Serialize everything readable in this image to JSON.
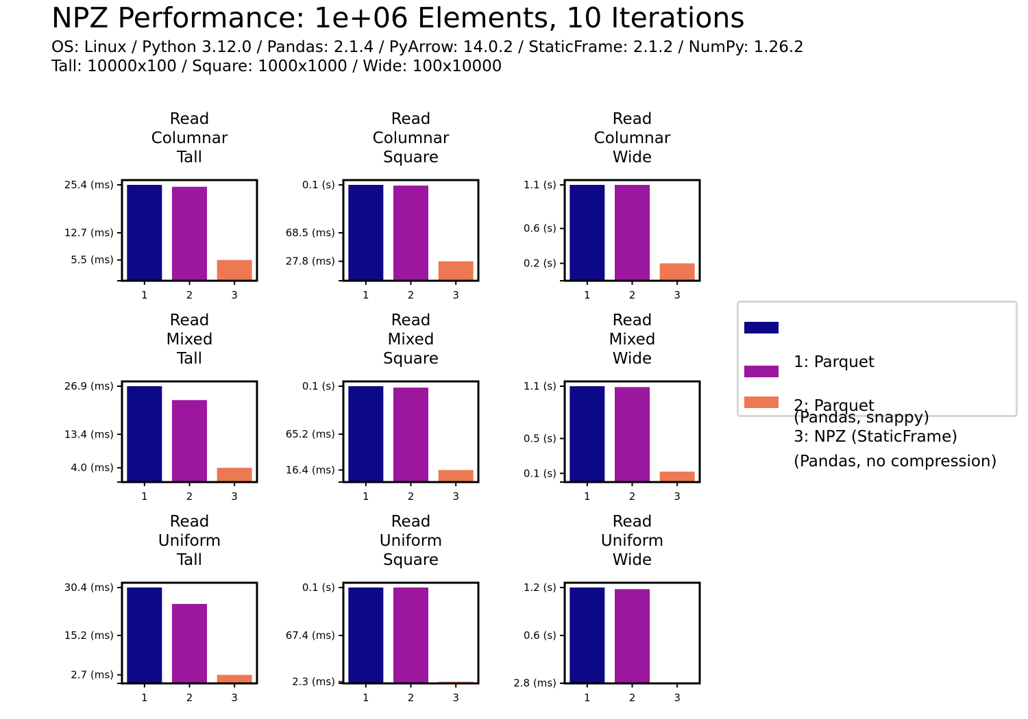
{
  "title": "NPZ Performance: 1e+06 Elements, 10 Iterations",
  "subtitle_lines": [
    "OS: Linux / Python 3.12.0 / Pandas: 2.1.4 / PyArrow: 14.0.2 / StaticFrame: 2.1.2 / NumPy: 1.26.2",
    "Tall: 10000x100 / Square: 1000x1000 / Wide: 100x10000"
  ],
  "colors": {
    "series1": "#0d0887",
    "series2": "#9c179e",
    "series3": "#ed7953"
  },
  "legend": {
    "placement": "right",
    "items": [
      {
        "line1": "1: Parquet",
        "line2": "(Pandas, snappy)"
      },
      {
        "line1": "2: Parquet",
        "line2": "(Pandas, no compression)"
      },
      {
        "line1": "3: NPZ (StaticFrame)",
        "line2": ""
      }
    ]
  },
  "chart_data": [
    {
      "type": "bar",
      "title": [
        "Read",
        "Columnar",
        "Tall"
      ],
      "categories": [
        "1",
        "2",
        "3"
      ],
      "values_ms": [
        25.4,
        24.9,
        5.5
      ],
      "yticks_ms": [
        25.4,
        12.7,
        5.5
      ],
      "ytick_labels": [
        "25.4 (ms)",
        "12.7 (ms)",
        "5.5 (ms)"
      ]
    },
    {
      "type": "bar",
      "title": [
        "Read",
        "Columnar",
        "Square"
      ],
      "categories": [
        "1",
        "2",
        "3"
      ],
      "values_ms": [
        137.0,
        136.0,
        27.8
      ],
      "yticks_ms": [
        137.0,
        68.5,
        27.8
      ],
      "ytick_labels": [
        "0.1 (s)",
        "68.5 (ms)",
        "27.8 (ms)"
      ]
    },
    {
      "type": "bar",
      "title": [
        "Read",
        "Columnar",
        "Wide"
      ],
      "categories": [
        "1",
        "2",
        "3"
      ],
      "values_ms": [
        1100,
        1100,
        200
      ],
      "yticks_ms": [
        1100,
        600,
        200
      ],
      "ytick_labels": [
        "1.1 (s)",
        "0.6 (s)",
        "0.2 (s)"
      ]
    },
    {
      "type": "bar",
      "title": [
        "Read",
        "Mixed",
        "Tall"
      ],
      "categories": [
        "1",
        "2",
        "3"
      ],
      "values_ms": [
        26.9,
        23.0,
        4.0
      ],
      "yticks_ms": [
        26.9,
        13.4,
        4.0
      ],
      "ytick_labels": [
        "26.9 (ms)",
        "13.4 (ms)",
        "4.0 (ms)"
      ]
    },
    {
      "type": "bar",
      "title": [
        "Read",
        "Mixed",
        "Square"
      ],
      "categories": [
        "1",
        "2",
        "3"
      ],
      "values_ms": [
        130.4,
        128.5,
        16.4
      ],
      "yticks_ms": [
        130.4,
        65.2,
        16.4
      ],
      "ytick_labels": [
        "0.1 (s)",
        "65.2 (ms)",
        "16.4 (ms)"
      ]
    },
    {
      "type": "bar",
      "title": [
        "Read",
        "Mixed",
        "Wide"
      ],
      "categories": [
        "1",
        "2",
        "3"
      ],
      "values_ms": [
        1100,
        1090,
        120
      ],
      "yticks_ms": [
        1100,
        500,
        100
      ],
      "ytick_labels": [
        "1.1 (s)",
        "0.5 (s)",
        "0.1 (s)"
      ]
    },
    {
      "type": "bar",
      "title": [
        "Read",
        "Uniform",
        "Tall"
      ],
      "categories": [
        "1",
        "2",
        "3"
      ],
      "values_ms": [
        30.4,
        25.2,
        2.7
      ],
      "yticks_ms": [
        30.4,
        15.2,
        2.7
      ],
      "ytick_labels": [
        "30.4 (ms)",
        "15.2 (ms)",
        "2.7 (ms)"
      ]
    },
    {
      "type": "bar",
      "title": [
        "Read",
        "Uniform",
        "Square"
      ],
      "categories": [
        "1",
        "2",
        "3"
      ],
      "values_ms": [
        134.8,
        134.8,
        2.3
      ],
      "yticks_ms": [
        134.8,
        67.4,
        2.3
      ],
      "ytick_labels": [
        "0.1 (s)",
        "67.4 (ms)",
        "2.3 (ms)"
      ]
    },
    {
      "type": "bar",
      "title": [
        "Read",
        "Uniform",
        "Wide"
      ],
      "categories": [
        "1",
        "2",
        "3"
      ],
      "values_ms": [
        1200,
        1180,
        2.8
      ],
      "yticks_ms": [
        1200,
        600,
        2.8
      ],
      "ytick_labels": [
        "1.2 (s)",
        "0.6 (s)",
        "2.8 (ms)"
      ]
    }
  ]
}
